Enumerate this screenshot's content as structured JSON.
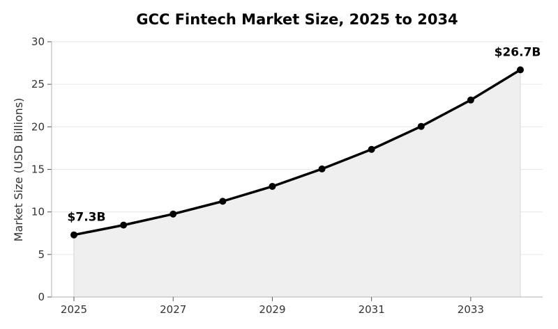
{
  "chart_data": {
    "type": "line",
    "title": "GCC Fintech Market Size, 2025 to 2034",
    "xlabel": "",
    "ylabel": "Market Size (USD Billions)",
    "x": [
      2025,
      2026,
      2027,
      2028,
      2029,
      2030,
      2031,
      2032,
      2033,
      2034
    ],
    "series": [
      {
        "values": [
          7.3,
          8.45,
          9.75,
          11.25,
          13.0,
          15.05,
          17.35,
          20.05,
          23.15,
          26.7
        ]
      }
    ],
    "xticks": [
      "2025",
      "2027",
      "2029",
      "2031",
      "2033"
    ],
    "yticks": [
      "0",
      "5",
      "10",
      "15",
      "20",
      "25",
      "30"
    ],
    "ylim": [
      0,
      30
    ],
    "xlim": [
      2024.55,
      2034.45
    ],
    "grid": "horizontal",
    "area_fill": true,
    "annotations": [
      {
        "text": "$7.3B",
        "x": 2025,
        "y": 7.3
      },
      {
        "text": "$26.7B",
        "x": 2034,
        "y": 26.7
      }
    ],
    "colors": {
      "line": "#000000",
      "area": "#efefef",
      "grid": "#e6e6e6"
    }
  }
}
